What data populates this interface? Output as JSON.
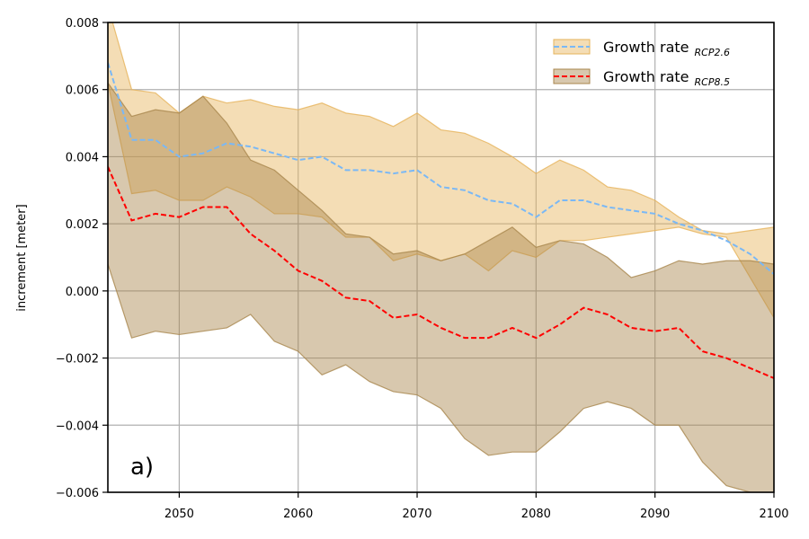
{
  "chart_data": {
    "type": "line",
    "ylabel": "increment [meter]",
    "annotation": "a)",
    "x": [
      2044,
      2046,
      2048,
      2050,
      2052,
      2054,
      2056,
      2058,
      2060,
      2062,
      2064,
      2066,
      2068,
      2070,
      2072,
      2074,
      2076,
      2078,
      2080,
      2082,
      2084,
      2086,
      2088,
      2090,
      2092,
      2094,
      2096,
      2098,
      2100
    ],
    "xlim": [
      2044,
      2100
    ],
    "xticks": [
      2050,
      2060,
      2070,
      2080,
      2090,
      2100
    ],
    "ylim": [
      -0.006,
      0.008
    ],
    "yticks": [
      {
        "value": -0.006,
        "label": "−0.006"
      },
      {
        "value": -0.004,
        "label": "−0.004"
      },
      {
        "value": -0.002,
        "label": "−0.002"
      },
      {
        "value": 0,
        "label": "0.000"
      },
      0.002,
      0.004,
      0.006,
      0.008
    ],
    "grid": true,
    "legend": "upper right",
    "series": [
      {
        "name": "Growth rate",
        "name_sub": "RCP2.6",
        "color": "#7ab8f5",
        "band_color": "#e6b35a",
        "values": [
          0.0068,
          0.0045,
          0.0045,
          0.004,
          0.0041,
          0.0044,
          0.0043,
          0.0041,
          0.0039,
          0.004,
          0.0036,
          0.0036,
          0.0035,
          0.0036,
          0.0031,
          0.003,
          0.0027,
          0.0026,
          0.0022,
          0.0027,
          0.0027,
          0.0025,
          0.0024,
          0.0023,
          0.002,
          0.0018,
          0.0015,
          0.0011,
          0.0005
        ],
        "upper": [
          0.0085,
          0.006,
          0.0059,
          0.0053,
          0.0058,
          0.0056,
          0.0057,
          0.0055,
          0.0054,
          0.0056,
          0.0053,
          0.0052,
          0.0049,
          0.0053,
          0.0048,
          0.0047,
          0.0044,
          0.004,
          0.0035,
          0.0039,
          0.0036,
          0.0031,
          0.003,
          0.0027,
          0.0022,
          0.0018,
          0.0017,
          0.0018,
          0.0019
        ],
        "lower": [
          0.0062,
          0.0029,
          0.003,
          0.0027,
          0.0027,
          0.0031,
          0.0028,
          0.0023,
          0.0023,
          0.0022,
          0.0016,
          0.0016,
          0.0009,
          0.0011,
          0.0009,
          0.0011,
          0.0006,
          0.0012,
          0.001,
          0.0015,
          0.0015,
          0.0016,
          0.0017,
          0.0018,
          0.0019,
          0.0017,
          0.0016,
          0.0004,
          -0.0008
        ]
      },
      {
        "name": "Growth rate",
        "name_sub": "RCP8.5",
        "color": "#ff0000",
        "band_color": "#a8864c",
        "values": [
          0.0037,
          0.0021,
          0.0023,
          0.0022,
          0.0025,
          0.0025,
          0.0017,
          0.0012,
          0.0006,
          0.0003,
          -0.0002,
          -0.0003,
          -0.0008,
          -0.0007,
          -0.0011,
          -0.0014,
          -0.0014,
          -0.0011,
          -0.0014,
          -0.001,
          -0.0005,
          -0.0007,
          -0.0011,
          -0.0012,
          -0.0011,
          -0.0018,
          -0.002,
          -0.0023,
          -0.0026
        ],
        "upper": [
          0.0062,
          0.0052,
          0.0054,
          0.0053,
          0.0058,
          0.005,
          0.0039,
          0.0036,
          0.003,
          0.0024,
          0.0017,
          0.0016,
          0.0011,
          0.0012,
          0.0009,
          0.0011,
          0.0015,
          0.0019,
          0.0013,
          0.0015,
          0.0014,
          0.001,
          0.0004,
          0.0006,
          0.0009,
          0.0008,
          0.0009,
          0.0009,
          0.0008
        ],
        "lower": [
          0.0008,
          -0.0014,
          -0.0012,
          -0.0013,
          -0.0012,
          -0.0011,
          -0.0007,
          -0.0015,
          -0.0018,
          -0.0025,
          -0.0022,
          -0.0027,
          -0.003,
          -0.0031,
          -0.0035,
          -0.0044,
          -0.0049,
          -0.0048,
          -0.0048,
          -0.0042,
          -0.0035,
          -0.0033,
          -0.0035,
          -0.004,
          -0.004,
          -0.0051,
          -0.0058,
          -0.006,
          -0.0062
        ]
      }
    ]
  }
}
